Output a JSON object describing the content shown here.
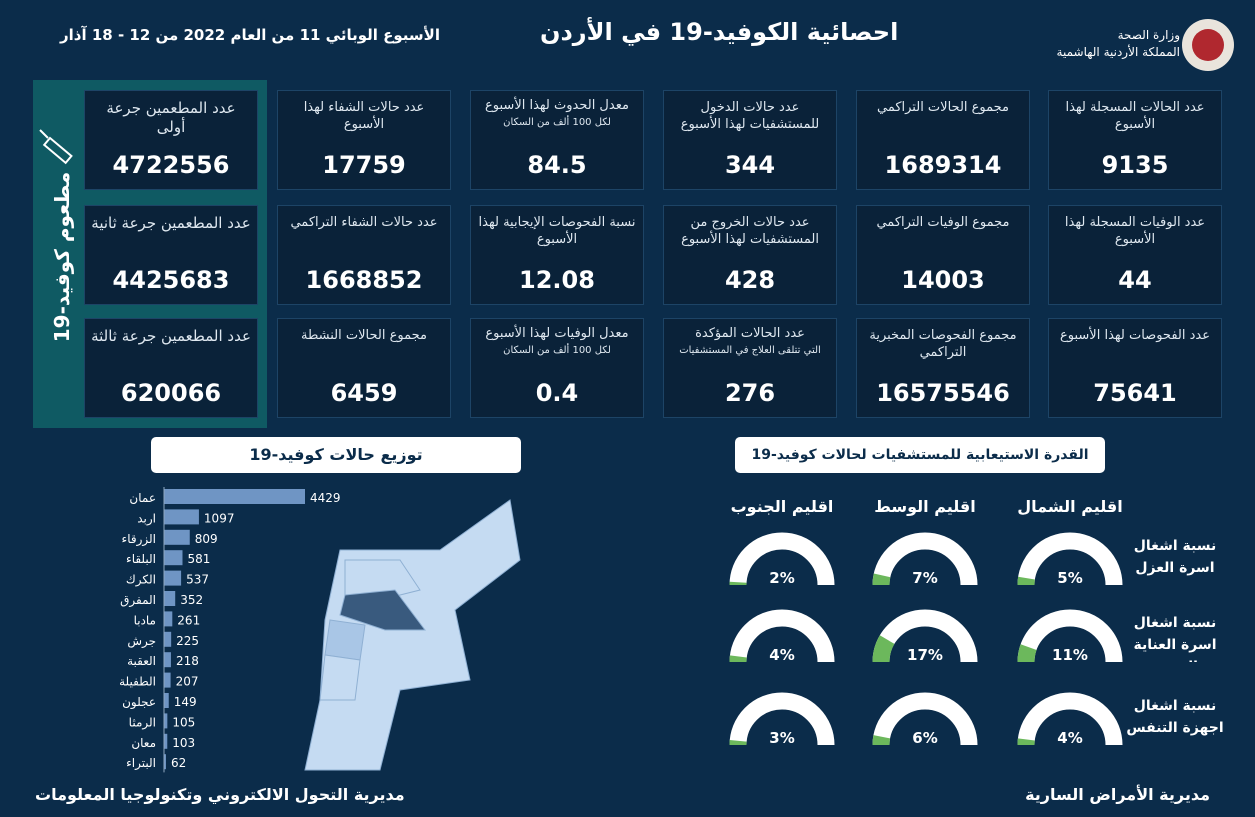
{
  "header": {
    "title": "احصائية الكوفيد-19 في الأردن",
    "week": "الأسبوع الوبائي  11 من العام 2022 من  12 - 18 آذار",
    "ministry": "وزارة الصحة",
    "kingdom": "المملكة الأردنية الهاشمية"
  },
  "stats": [
    [
      {
        "label": "عدد الحالات المسجلة لهذا الأسبوع",
        "value": 9135
      },
      {
        "label": "مجموع الحالات التراكمي",
        "value": 1689314
      },
      {
        "label": "عدد حالات الدخول للمستشفيات لهذا الأسبوع",
        "value": 344
      },
      {
        "label": "معدل الحدوث لهذا الأسبوع",
        "note": "لكل 100 ألف من السكان",
        "value": 84.5
      },
      {
        "label": "عدد حالات الشفاء لهذا الأسبوع",
        "value": 17759
      }
    ],
    [
      {
        "label": "عدد الوفيات المسجلة لهذا الأسبوع",
        "value": 44
      },
      {
        "label": "مجموع الوفيات التراكمي",
        "value": 14003
      },
      {
        "label": "عدد حالات الخروج من المستشفيات لهذا الأسبوع",
        "value": 428
      },
      {
        "label": "نسبة الفحوصات الإيجابية لهذا الأسبوع",
        "value": 12.08
      },
      {
        "label": "عدد حالات الشفاء التراكمي",
        "value": 1668852
      }
    ],
    [
      {
        "label": "عدد الفحوصات لهذا الأسبوع",
        "value": 75641
      },
      {
        "label": "مجموع الفحوصات المخبرية التراكمي",
        "value": 16575546
      },
      {
        "label": "عدد الحالات المؤكدة",
        "note": "التي تتلقى العلاج في المستشفيات",
        "value": 276
      },
      {
        "label": "معدل الوفيات لهذا الأسبوع",
        "note": "لكل 100 ألف من السكان",
        "value": 0.4
      },
      {
        "label": "مجموع الحالات النشطة",
        "value": 6459
      }
    ]
  ],
  "vaccine": {
    "title": "مطعوم كوفيد-19",
    "cards": [
      {
        "label": "عدد المطعمين جرعة أولى",
        "value": 4722556
      },
      {
        "label": "عدد المطعمين جرعة ثانية",
        "value": 4425683
      },
      {
        "label": "عدد المطعمين جرعة ثالثة",
        "value": 620066
      }
    ]
  },
  "chart_data": [
    {
      "type": "bar",
      "title": "توزيع حالات كوفيد-19",
      "categories": [
        "عمان",
        "اربد",
        "الزرقاء",
        "البلقاء",
        "الكرك",
        "المفرق",
        "مادبا",
        "جرش",
        "العقبة",
        "الطفيلة",
        "عجلون",
        "الرمثا",
        "معان",
        "البتراء"
      ],
      "values": [
        4429,
        1097,
        809,
        581,
        537,
        352,
        261,
        225,
        218,
        207,
        149,
        105,
        103,
        62
      ],
      "color": "#6f95c4"
    },
    {
      "type": "gauge",
      "title": "القدرة الاستيعابية للمستشفيات لحالات كوفيد-19",
      "categories": [
        "اقليم الشمال",
        "اقليم الوسط",
        "اقليم الجنوب"
      ],
      "ylim": [
        0,
        100
      ],
      "series": [
        {
          "name": "نسبة اشغال اسرة العزل",
          "color": "#6cb85c",
          "values": [
            5,
            7,
            2
          ],
          "value_labels": [
            "5%",
            "7%",
            "2%"
          ]
        },
        {
          "name": "نسبة اشغال اسرة العناية الحثيثة",
          "color": "#6cb85c",
          "values": [
            11,
            17,
            4
          ],
          "value_labels": [
            "11%",
            "17%",
            "4%"
          ]
        },
        {
          "name": "نسبة اشغال اجهزة التنفس",
          "color": "#6cb85c",
          "values": [
            4,
            6,
            3
          ],
          "value_labels": [
            "4%",
            "6%",
            "3%"
          ]
        }
      ]
    }
  ],
  "footer": {
    "left": "مديرية التحول الالكتروني وتكنولوجيا المعلومات",
    "right": "مديرية الأمراض السارية"
  }
}
